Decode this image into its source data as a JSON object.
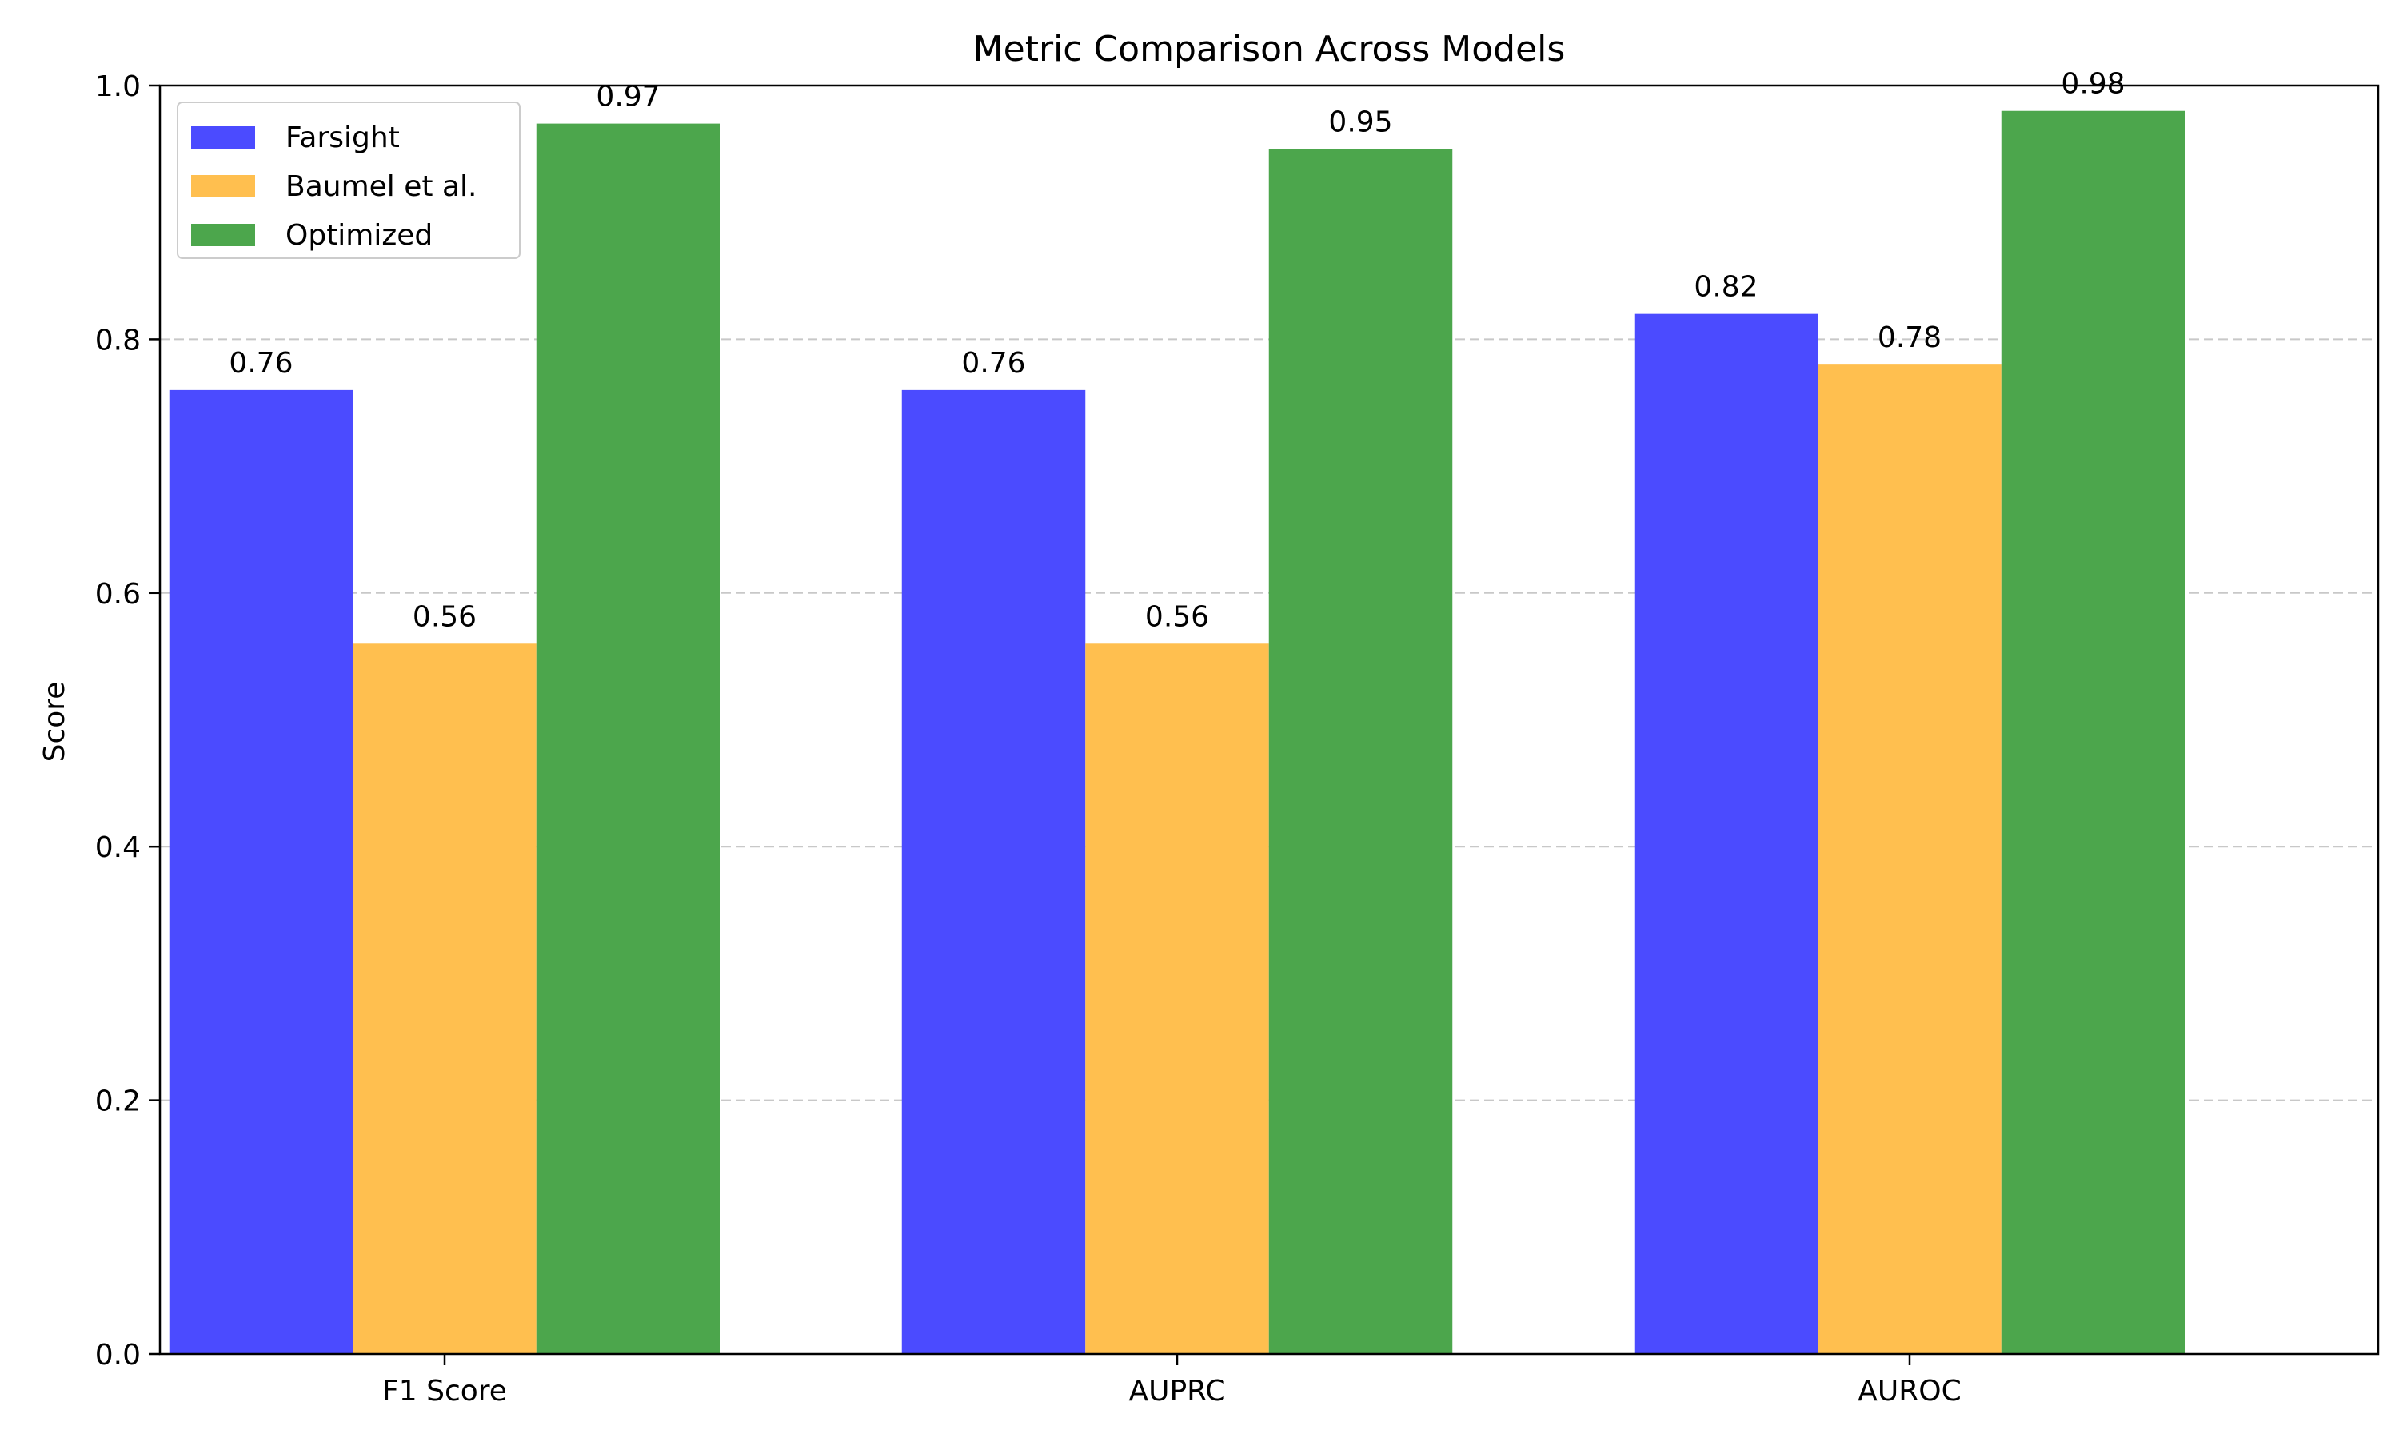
{
  "chart_data": {
    "type": "bar",
    "title": "Metric Comparison Across Models",
    "xlabel": "",
    "ylabel": "Score",
    "categories": [
      "F1 Score",
      "AUPRC",
      "AUROC"
    ],
    "series": [
      {
        "name": "Farsight",
        "color": "#4b4bff",
        "values": [
          0.76,
          0.76,
          0.82
        ]
      },
      {
        "name": "Baumel et al.",
        "color": "#ffbf4f",
        "values": [
          0.56,
          0.56,
          0.78
        ]
      },
      {
        "name": "Optimized",
        "color": "#4ca64c",
        "values": [
          0.97,
          0.95,
          0.98
        ]
      }
    ],
    "data_labels": [
      [
        "0.76",
        "0.76",
        "0.82"
      ],
      [
        "0.56",
        "0.56",
        "0.78"
      ],
      [
        "0.97",
        "0.95",
        "0.98"
      ]
    ],
    "ylim": [
      0,
      1.0
    ],
    "yticks": [
      0.0,
      0.2,
      0.4,
      0.6,
      0.8,
      1.0
    ],
    "ytick_labels": [
      "0.0",
      "0.2",
      "0.4",
      "0.6",
      "0.8",
      "1.0"
    ],
    "grid": {
      "y": true,
      "style": "dashed"
    },
    "legend_position": "top-left"
  }
}
